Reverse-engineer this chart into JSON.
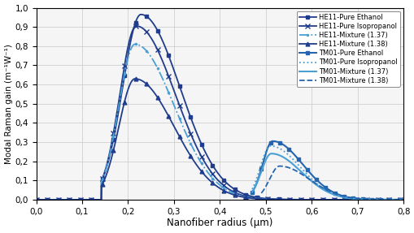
{
  "title": "",
  "xlabel": "Nanofiber radius (μm)",
  "ylabel": "Modal Raman gain (m⁻¹W⁻¹)",
  "xlim": [
    0.0,
    0.8
  ],
  "ylim": [
    0.0,
    1.0
  ],
  "xticks": [
    0.0,
    0.1,
    0.2,
    0.3,
    0.4,
    0.5,
    0.6,
    0.7,
    0.8
  ],
  "yticks": [
    0.0,
    0.1,
    0.2,
    0.3,
    0.4,
    0.5,
    0.6,
    0.7,
    0.8,
    0.9,
    1.0
  ],
  "legend_entries": [
    "HE11-Pure Ethanol",
    "HE11-Pure Isopropanol",
    "HE11-Mixture (1.37)",
    "HE11-Mixture (1.38)",
    "TM01-Pure Ethanol",
    "TM01-Pure Isopropanol",
    "TM01-Mixture (1.37)",
    "TM01-Mixture (1.38)"
  ],
  "he11_ethanol": {
    "scale": 0.965,
    "r_peak": 0.228,
    "wl": 0.04,
    "wr": 0.085,
    "r_start": 0.142
  },
  "he11_isoprop": {
    "scale": 0.905,
    "r_peak": 0.218,
    "wl": 0.036,
    "wr": 0.085,
    "r_start": 0.142
  },
  "he11_mix137": {
    "scale": 0.81,
    "r_peak": 0.215,
    "wl": 0.035,
    "wr": 0.085,
    "r_start": 0.142
  },
  "he11_mix138": {
    "scale": 0.63,
    "r_peak": 0.215,
    "wl": 0.035,
    "wr": 0.085,
    "r_start": 0.142
  },
  "tm01_ethanol": {
    "scale": 0.305,
    "r_peak": 0.515,
    "wl": 0.022,
    "wr": 0.065,
    "r_start": 0.47
  },
  "tm01_isoprop": {
    "scale": 0.28,
    "r_peak": 0.51,
    "wl": 0.022,
    "wr": 0.065,
    "r_start": 0.47
  },
  "tm01_mix137": {
    "scale": 0.24,
    "r_peak": 0.512,
    "wl": 0.022,
    "wr": 0.065,
    "r_start": 0.47
  },
  "tm01_mix138": {
    "scale": 0.175,
    "r_peak": 0.53,
    "wl": 0.022,
    "wr": 0.065,
    "r_start": 0.49
  },
  "dark_blue": "#1f3d8c",
  "mid_blue": "#2565ae",
  "light_blue": "#4a9fd4",
  "bg_color": "#f5f5f5"
}
